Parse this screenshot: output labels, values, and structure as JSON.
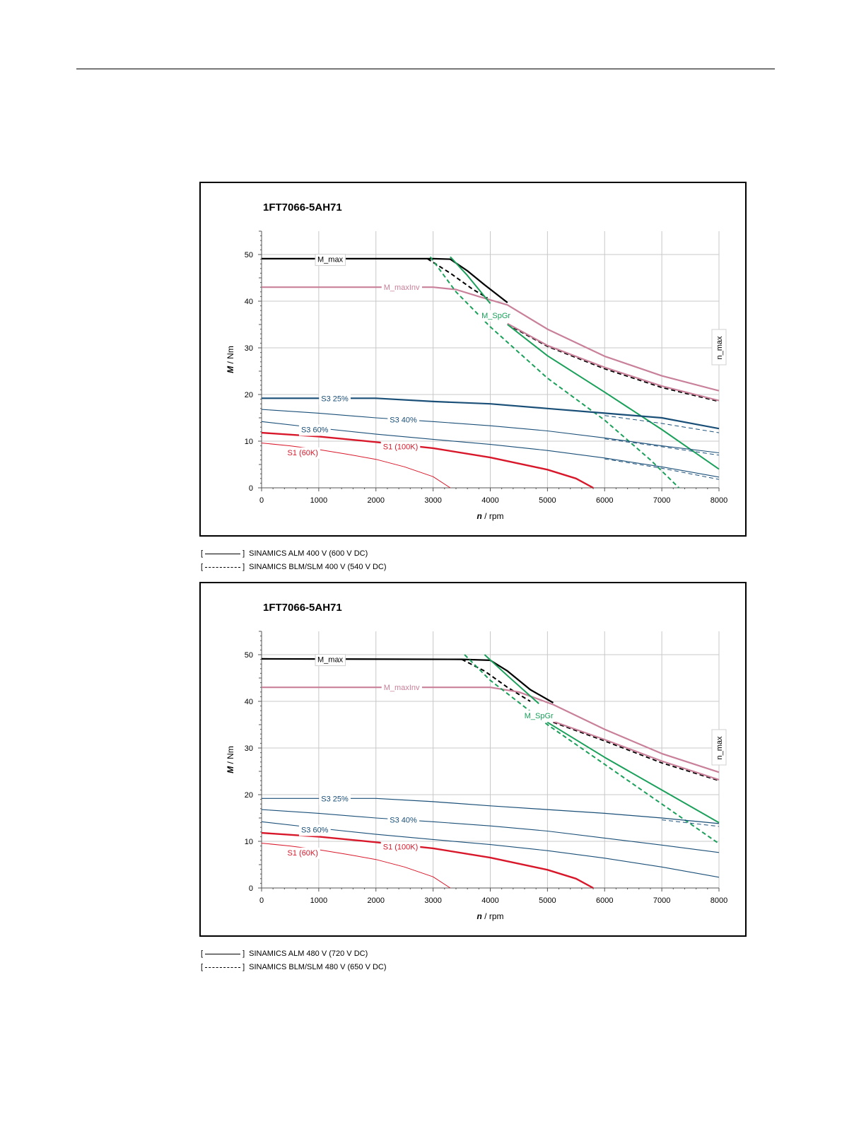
{
  "chart_data": [
    {
      "type": "line",
      "title": "1FT7066-5AH71",
      "xlabel": "n / rpm",
      "ylabel": "M / Nm",
      "xlim": [
        0,
        8000
      ],
      "ylim": [
        0,
        55
      ],
      "xticks": [
        0,
        1000,
        2000,
        3000,
        4000,
        5000,
        6000,
        7000,
        8000
      ],
      "yticks": [
        0,
        10,
        20,
        30,
        40,
        50
      ],
      "grid": true,
      "vertical_marker": {
        "x": 8000,
        "label": "n_max"
      },
      "series": [
        {
          "name": "M_max",
          "color": "#000000",
          "width": 2.2,
          "dash": false,
          "label_at": [
            1200,
            49
          ],
          "points": [
            [
              0,
              49.1
            ],
            [
              3000,
              49.1
            ],
            [
              3300,
              49
            ],
            [
              3600,
              46.5
            ],
            [
              3900,
              43.5
            ],
            [
              4300,
              39.7
            ]
          ]
        },
        {
          "name": "",
          "color": "#000000",
          "width": 2.0,
          "dash": true,
          "points": [
            [
              2900,
              49.1
            ],
            [
              3300,
              46
            ],
            [
              3700,
              42.5
            ],
            [
              3950,
              40.7
            ]
          ]
        },
        {
          "name": "",
          "color": "#000000",
          "width": 1.8,
          "dash": true,
          "points": [
            [
              4300,
              35
            ],
            [
              5000,
              30.3
            ],
            [
              6000,
              25.5
            ],
            [
              7000,
              21.5
            ],
            [
              8000,
              18.5
            ]
          ]
        },
        {
          "name": "M_maxInv",
          "color": "#c9809a",
          "width": 2.2,
          "dash": false,
          "label_at": [
            2450,
            43
          ],
          "points": [
            [
              0,
              43
            ],
            [
              3000,
              43
            ],
            [
              3400,
              42.5
            ],
            [
              3800,
              41
            ],
            [
              4300,
              39.2
            ],
            [
              5000,
              34
            ],
            [
              6000,
              28.2
            ],
            [
              7000,
              24
            ],
            [
              8000,
              20.8
            ]
          ]
        },
        {
          "name": "",
          "color": "#c9809a",
          "width": 2.2,
          "dash": false,
          "points": [
            [
              4300,
              35.2
            ],
            [
              5000,
              30.5
            ],
            [
              6000,
              25.8
            ],
            [
              7000,
              21.8
            ],
            [
              8000,
              18.7
            ]
          ]
        },
        {
          "name": "M_SpGr",
          "color": "#1aa05a",
          "width": 2.0,
          "dash": false,
          "label_at": [
            4100,
            37
          ],
          "points": [
            [
              3300,
              49.5
            ],
            [
              3600,
              45.5
            ],
            [
              4000,
              39.5
            ]
          ]
        },
        {
          "name": "",
          "color": "#1aa05a",
          "width": 2.0,
          "dash": false,
          "points": [
            [
              4300,
              35
            ],
            [
              5000,
              28.3
            ],
            [
              6000,
              20.5
            ],
            [
              7000,
              12.5
            ],
            [
              8000,
              4
            ]
          ]
        },
        {
          "name": "",
          "color": "#1aa05a",
          "width": 2.0,
          "dash": true,
          "points": [
            [
              2950,
              49.5
            ],
            [
              3400,
              42
            ],
            [
              4000,
              34.5
            ],
            [
              5000,
              23.5
            ],
            [
              6000,
              14.5
            ],
            [
              6800,
              6
            ],
            [
              7300,
              0
            ]
          ]
        },
        {
          "name": "S3 25%",
          "color": "#1a4f78",
          "width": 2.2,
          "dash": false,
          "label_at": [
            1280,
            19.2
          ],
          "points": [
            [
              0,
              19.2
            ],
            [
              2000,
              19.2
            ],
            [
              3000,
              18.5
            ],
            [
              4000,
              18
            ],
            [
              5000,
              17
            ],
            [
              6000,
              16
            ],
            [
              7000,
              15
            ],
            [
              8000,
              12.7
            ]
          ]
        },
        {
          "name": "",
          "color": "#1a4f78",
          "width": 1.0,
          "dash": true,
          "points": [
            [
              6000,
              15.5
            ],
            [
              7000,
              13.8
            ],
            [
              8000,
              11.8
            ]
          ]
        },
        {
          "name": "S3 40%",
          "color": "#1a4f78",
          "width": 1.1,
          "dash": false,
          "label_at": [
            2480,
            14.6
          ],
          "points": [
            [
              0,
              16.8
            ],
            [
              1000,
              16
            ],
            [
              2000,
              15
            ],
            [
              3000,
              14.2
            ],
            [
              4000,
              13.3
            ],
            [
              5000,
              12.2
            ],
            [
              6000,
              10.7
            ],
            [
              7000,
              9
            ],
            [
              8000,
              7.5
            ]
          ]
        },
        {
          "name": "",
          "color": "#1a4f78",
          "width": 1.0,
          "dash": true,
          "points": [
            [
              6000,
              10.5
            ],
            [
              7000,
              8.8
            ],
            [
              8000,
              7.0
            ]
          ]
        },
        {
          "name": "S3 60%",
          "color": "#1a4f78",
          "width": 1.1,
          "dash": false,
          "label_at": [
            930,
            12.5
          ],
          "points": [
            [
              0,
              14.2
            ],
            [
              1000,
              12.8
            ],
            [
              2000,
              11.5
            ],
            [
              3000,
              10.4
            ],
            [
              4000,
              9.3
            ],
            [
              5000,
              8
            ],
            [
              6000,
              6.4
            ],
            [
              7000,
              4.5
            ],
            [
              8000,
              2.3
            ]
          ]
        },
        {
          "name": "",
          "color": "#1a4f78",
          "width": 1.0,
          "dash": true,
          "points": [
            [
              6000,
              6.2
            ],
            [
              7000,
              4.2
            ],
            [
              8000,
              1.8
            ]
          ]
        },
        {
          "name": "S1 (100K)",
          "color": "#d8182a",
          "width": 2.4,
          "dash": false,
          "label_at": [
            2430,
            8.9
          ],
          "points": [
            [
              0,
              11.8
            ],
            [
              1000,
              11
            ],
            [
              2000,
              9.8
            ],
            [
              3000,
              8.5
            ],
            [
              4000,
              6.5
            ],
            [
              5000,
              3.9
            ],
            [
              5500,
              2
            ],
            [
              5800,
              0
            ]
          ]
        },
        {
          "name": "S1 (60K)",
          "color": "#d8182a",
          "width": 1.0,
          "dash": false,
          "label_at": [
            720,
            7.6
          ],
          "points": [
            [
              0,
              9.6
            ],
            [
              500,
              9
            ],
            [
              1000,
              8.2
            ],
            [
              1500,
              7.2
            ],
            [
              2000,
              6.1
            ],
            [
              2500,
              4.5
            ],
            [
              3000,
              2.4
            ],
            [
              3300,
              0
            ]
          ]
        }
      ]
    },
    {
      "type": "line",
      "title": "1FT7066-5AH71",
      "xlabel": "n / rpm",
      "ylabel": "M / Nm",
      "xlim": [
        0,
        8000
      ],
      "ylim": [
        0,
        55
      ],
      "xticks": [
        0,
        1000,
        2000,
        3000,
        4000,
        5000,
        6000,
        7000,
        8000
      ],
      "yticks": [
        0,
        10,
        20,
        30,
        40,
        50
      ],
      "grid": true,
      "vertical_marker": {
        "x": 8000,
        "label": "n_max"
      },
      "series": [
        {
          "name": "M_max",
          "color": "#000000",
          "width": 2.2,
          "dash": false,
          "label_at": [
            1200,
            49
          ],
          "points": [
            [
              0,
              49.1
            ],
            [
              3500,
              49
            ],
            [
              4000,
              48.8
            ],
            [
              4300,
              46.5
            ],
            [
              4700,
              42.5
            ],
            [
              5100,
              39.7
            ]
          ]
        },
        {
          "name": "",
          "color": "#000000",
          "width": 2.0,
          "dash": true,
          "points": [
            [
              3500,
              49
            ],
            [
              3900,
              46.5
            ],
            [
              4300,
              43
            ],
            [
              4700,
              40
            ]
          ]
        },
        {
          "name": "",
          "color": "#000000",
          "width": 1.8,
          "dash": true,
          "points": [
            [
              5100,
              35.5
            ],
            [
              6000,
              31.5
            ],
            [
              7000,
              26.8
            ],
            [
              8000,
              23
            ]
          ]
        },
        {
          "name": "M_maxInv",
          "color": "#c9809a",
          "width": 2.2,
          "dash": false,
          "label_at": [
            2450,
            43
          ],
          "points": [
            [
              0,
              43
            ],
            [
              4000,
              43
            ],
            [
              4500,
              42
            ],
            [
              5100,
              39.3
            ],
            [
              6000,
              34
            ],
            [
              7000,
              28.8
            ],
            [
              8000,
              24.8
            ]
          ]
        },
        {
          "name": "",
          "color": "#c9809a",
          "width": 2.2,
          "dash": false,
          "points": [
            [
              5100,
              35.7
            ],
            [
              6000,
              31.8
            ],
            [
              7000,
              27.2
            ],
            [
              8000,
              23.2
            ]
          ]
        },
        {
          "name": "M_SpGr",
          "color": "#1aa05a",
          "width": 2.0,
          "dash": false,
          "label_at": [
            4850,
            37
          ],
          "points": [
            [
              3900,
              50
            ],
            [
              4300,
              45.5
            ],
            [
              4850,
              39.5
            ]
          ]
        },
        {
          "name": "",
          "color": "#1aa05a",
          "width": 2.0,
          "dash": false,
          "points": [
            [
              5000,
              35.5
            ],
            [
              6000,
              28
            ],
            [
              7000,
              21
            ],
            [
              8000,
              14
            ]
          ]
        },
        {
          "name": "",
          "color": "#1aa05a",
          "width": 2.0,
          "dash": true,
          "points": [
            [
              3550,
              50
            ],
            [
              4000,
              44.5
            ],
            [
              5000,
              35
            ],
            [
              6000,
              26.5
            ],
            [
              7000,
              18
            ],
            [
              8000,
              9.5
            ]
          ]
        },
        {
          "name": "S3 25%",
          "color": "#1a4f78",
          "width": 1.2,
          "dash": false,
          "label_at": [
            1280,
            19.2
          ],
          "points": [
            [
              0,
              19.2
            ],
            [
              2000,
              19.2
            ],
            [
              3000,
              18.5
            ],
            [
              4000,
              17.6
            ],
            [
              5000,
              16.8
            ],
            [
              6000,
              16
            ],
            [
              7000,
              15
            ],
            [
              8000,
              13.8
            ]
          ]
        },
        {
          "name": "",
          "color": "#1a4f78",
          "width": 1.0,
          "dash": true,
          "points": [
            [
              7000,
              14.6
            ],
            [
              8000,
              13.2
            ]
          ]
        },
        {
          "name": "S3 40%",
          "color": "#1a4f78",
          "width": 1.1,
          "dash": false,
          "label_at": [
            2480,
            14.6
          ],
          "points": [
            [
              0,
              16.8
            ],
            [
              1000,
              16
            ],
            [
              2000,
              15
            ],
            [
              3000,
              14.2
            ],
            [
              4000,
              13.3
            ],
            [
              5000,
              12.2
            ],
            [
              6000,
              10.7
            ],
            [
              7000,
              9.2
            ],
            [
              8000,
              7.6
            ]
          ]
        },
        {
          "name": "S3 60%",
          "color": "#1a4f78",
          "width": 1.1,
          "dash": false,
          "label_at": [
            930,
            12.5
          ],
          "points": [
            [
              0,
              14.2
            ],
            [
              1000,
              12.8
            ],
            [
              2000,
              11.5
            ],
            [
              3000,
              10.4
            ],
            [
              4000,
              9.3
            ],
            [
              5000,
              8
            ],
            [
              6000,
              6.4
            ],
            [
              7000,
              4.5
            ],
            [
              8000,
              2.3
            ]
          ]
        },
        {
          "name": "S1 (100K)",
          "color": "#d8182a",
          "width": 2.4,
          "dash": false,
          "label_at": [
            2430,
            8.9
          ],
          "points": [
            [
              0,
              11.8
            ],
            [
              1000,
              11
            ],
            [
              2000,
              9.8
            ],
            [
              3000,
              8.5
            ],
            [
              4000,
              6.5
            ],
            [
              5000,
              3.9
            ],
            [
              5500,
              2
            ],
            [
              5800,
              0
            ]
          ]
        },
        {
          "name": "S1 (60K)",
          "color": "#d8182a",
          "width": 1.0,
          "dash": false,
          "label_at": [
            720,
            7.6
          ],
          "points": [
            [
              0,
              9.6
            ],
            [
              500,
              9
            ],
            [
              1000,
              8.2
            ],
            [
              1500,
              7.2
            ],
            [
              2000,
              6.1
            ],
            [
              2500,
              4.5
            ],
            [
              3000,
              2.4
            ],
            [
              3300,
              0
            ]
          ]
        }
      ]
    }
  ],
  "legends": [
    {
      "items": [
        {
          "style": "solid",
          "text": "SINAMICS ALM 400 V (600 V DC)"
        },
        {
          "style": "dashed",
          "text": "SINAMICS BLM/SLM 400 V (540 V DC)"
        }
      ]
    },
    {
      "items": [
        {
          "style": "solid",
          "text": "SINAMICS ALM 480 V (720 V DC)"
        },
        {
          "style": "dashed",
          "text": "SINAMICS BLM/SLM 480 V (650 V DC)"
        }
      ]
    }
  ]
}
